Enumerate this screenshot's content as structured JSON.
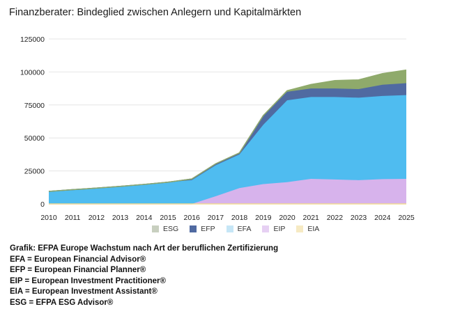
{
  "title": "Finanzberater: Bindeglied zwischen Anlegern und Kapitalmärkten",
  "chart_data": {
    "type": "area",
    "stacked": true,
    "x": [
      2010,
      2011,
      2012,
      2013,
      2014,
      2015,
      2016,
      2017,
      2018,
      2019,
      2020,
      2021,
      2022,
      2023,
      2024,
      2025
    ],
    "ylim": [
      0,
      125000
    ],
    "yticks": [
      "0",
      "25000",
      "50000",
      "75000",
      "100000",
      "125000"
    ],
    "legend_position": "bottom",
    "series": [
      {
        "name": "EIA",
        "color": "#f2dc92",
        "values": [
          0,
          0,
          0,
          0,
          0,
          0,
          0,
          0,
          0,
          0,
          0,
          0,
          0,
          0,
          0,
          0
        ]
      },
      {
        "name": "EIP",
        "color": "#d7b3ec",
        "values": [
          0,
          0,
          0,
          0,
          0,
          0,
          0,
          5800,
          12000,
          15000,
          16500,
          19000,
          18500,
          18000,
          18800,
          19000
        ]
      },
      {
        "name": "EFA",
        "color": "#4fbcf0",
        "values": [
          9500,
          10800,
          12000,
          13300,
          14800,
          16500,
          18000,
          23500,
          25500,
          45000,
          62000,
          62000,
          62500,
          62500,
          63000,
          63500
        ]
      },
      {
        "name": "EFP",
        "color": "#506aa1",
        "values": [
          0,
          0,
          0,
          0,
          0,
          0,
          900,
          1100,
          1200,
          7000,
          6500,
          6500,
          6500,
          6500,
          8500,
          9000
        ]
      },
      {
        "name": "ESG",
        "color": "#8faa6b",
        "values": [
          0,
          0,
          0,
          0,
          0,
          0,
          0,
          0,
          0,
          0,
          800,
          3000,
          6000,
          7000,
          8500,
          10000
        ]
      }
    ]
  },
  "legend": [
    {
      "label": "ESG",
      "color": "#c8cfbf"
    },
    {
      "label": "EFP",
      "color": "#506aa1"
    },
    {
      "label": "EFA",
      "color": "#c6e6f6"
    },
    {
      "label": "EIP",
      "color": "#e6d0f3"
    },
    {
      "label": "EIA",
      "color": "#f6eac3"
    }
  ],
  "caption": {
    "line1": "Grafik:  EFPA Europe Wachstum nach Art der beruflichen Zertifizierung",
    "line2": "EFA = European Financial Advisor®",
    "line3": "EFP = European Financial Planner®",
    "line4": "EIP = European Investment Practitioner®",
    "line5": "EIA = European Investment Assistant®",
    "line6": "ESG = EFPA ESG Advisor®"
  }
}
